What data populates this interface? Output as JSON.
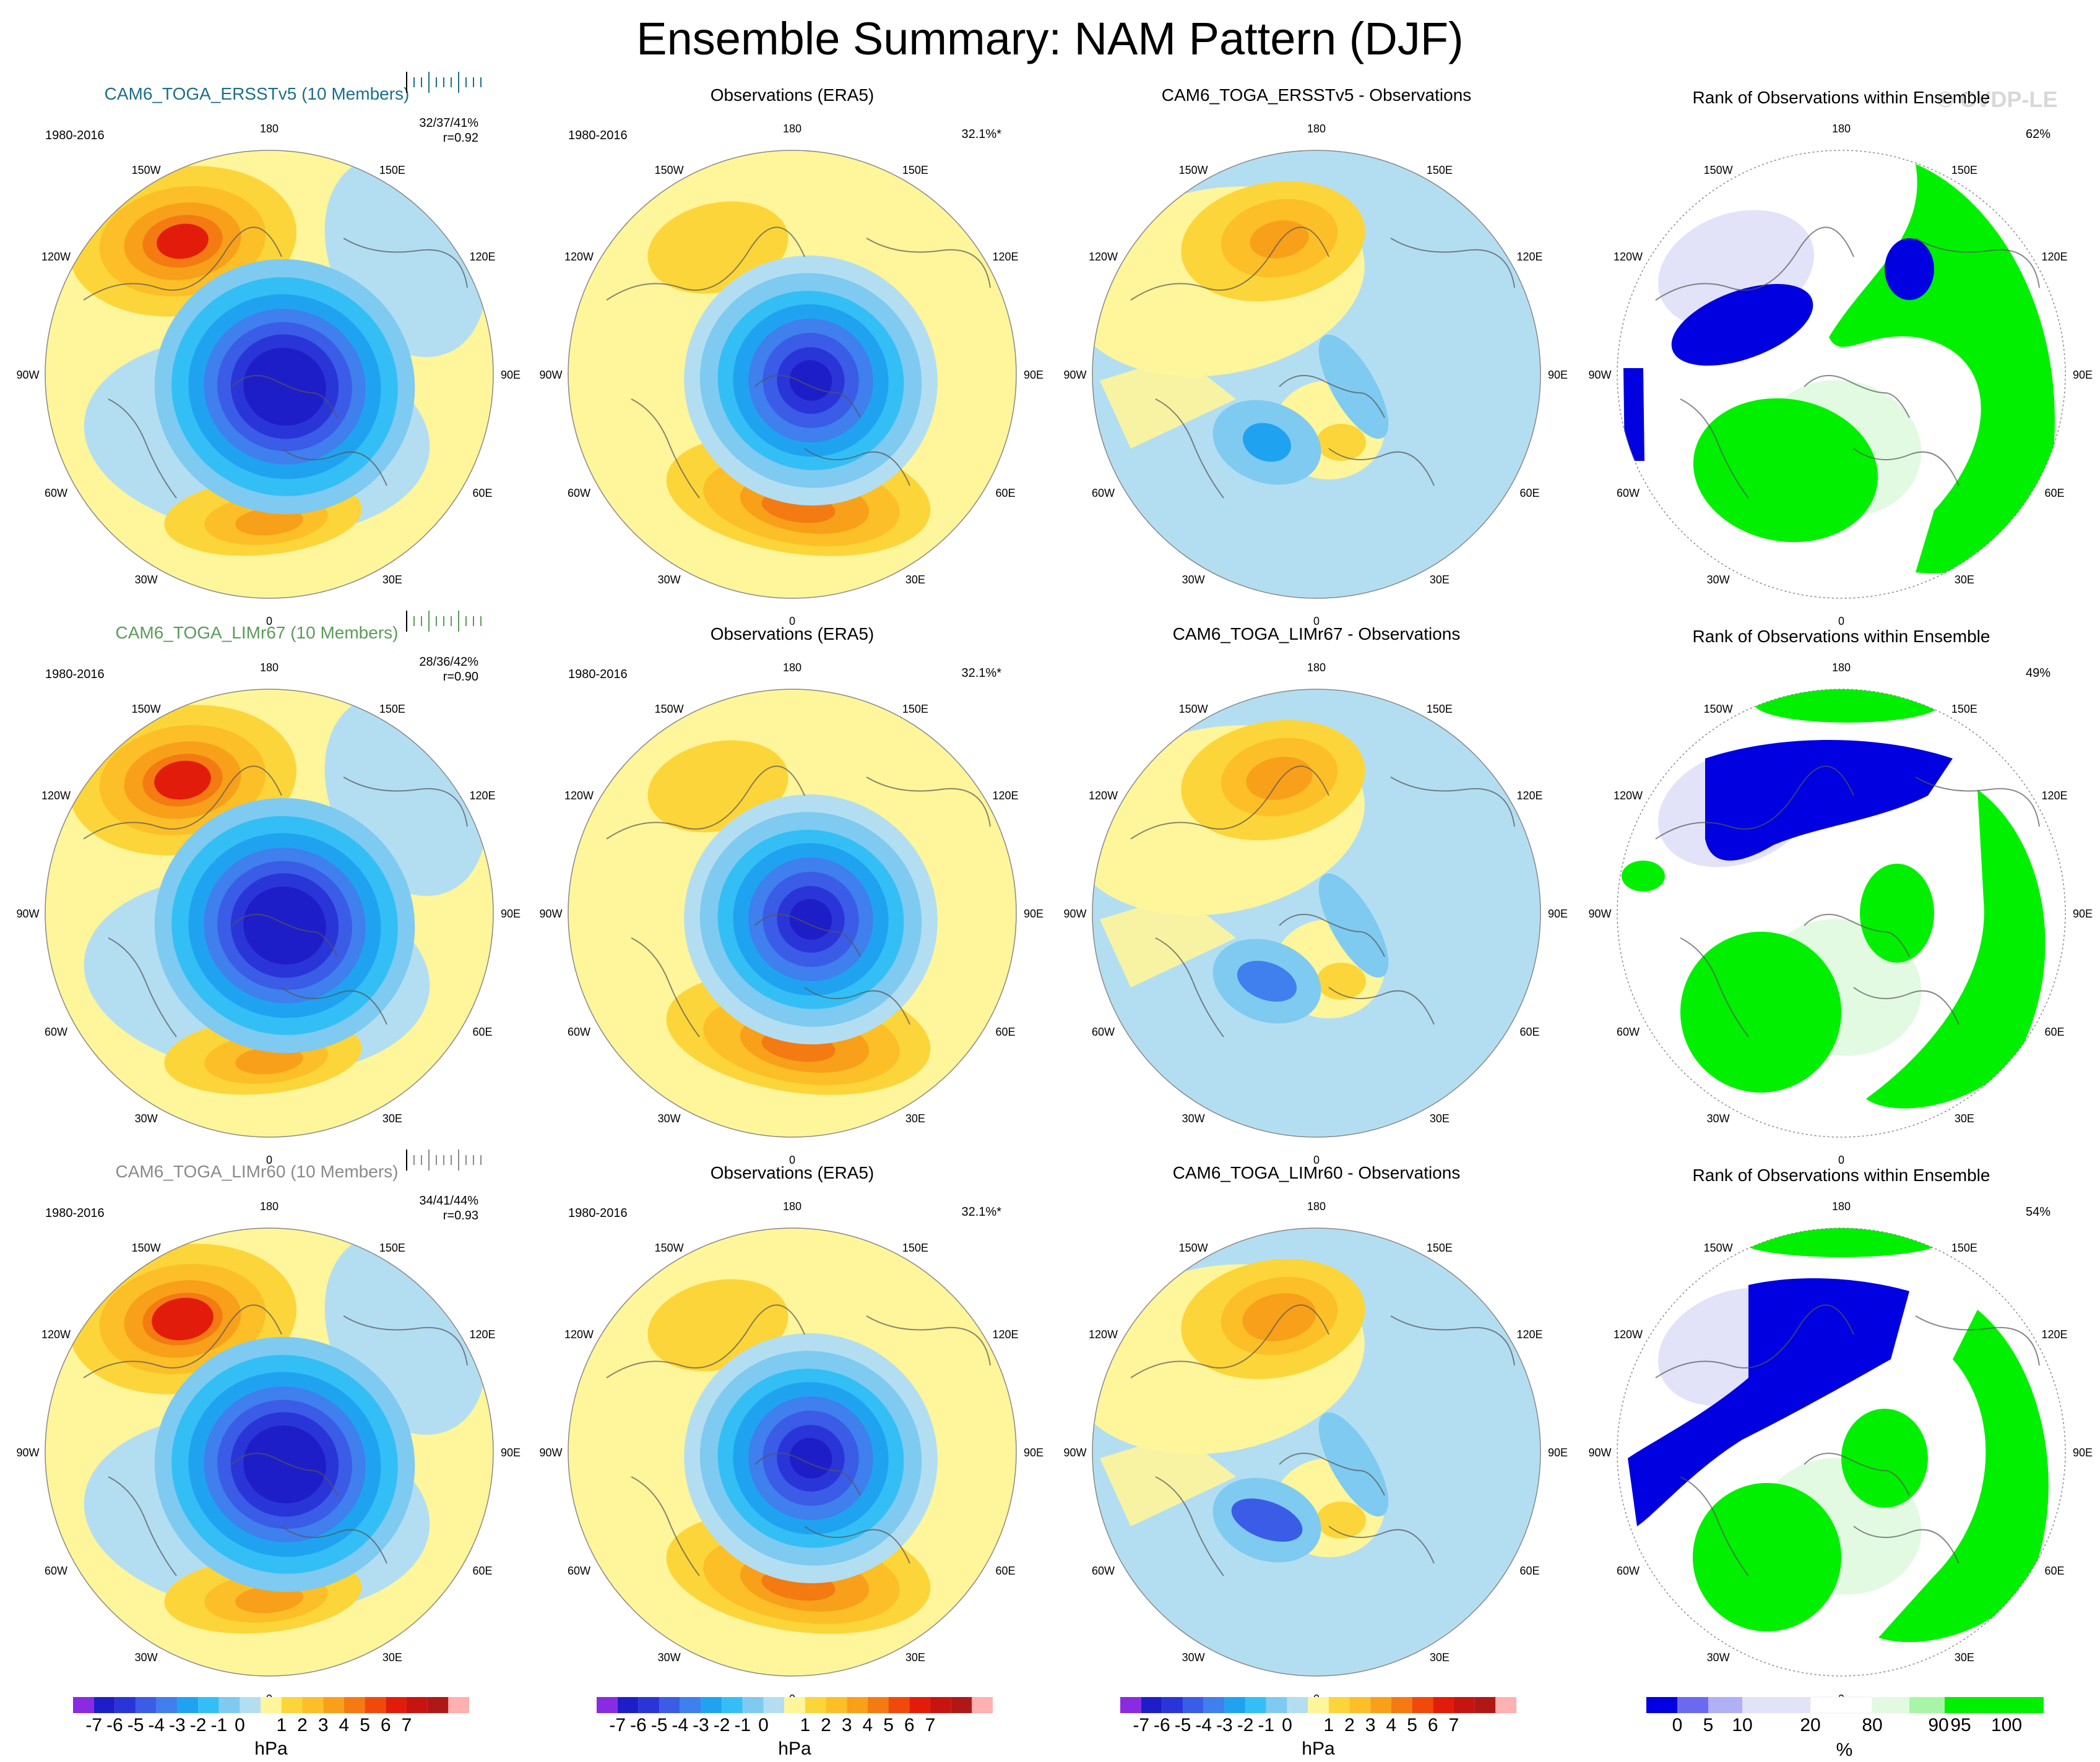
{
  "page": {
    "title": "Ensemble Summary: NAM Pattern (DJF)",
    "watermark": "© CVDP-LE"
  },
  "lon_labels": [
    "180",
    "150E",
    "120E",
    "90E",
    "60E",
    "30E",
    "0",
    "30W",
    "60W",
    "90W",
    "120W",
    "150W"
  ],
  "colors": {
    "ensemble_1": "#1a6f8a",
    "ensemble_2": "#5a9b5a",
    "ensemble_3": "#8a8a8a",
    "rank_low": "#0000e0",
    "rank_high": "#00f000",
    "coast": "#555555"
  },
  "rows": [
    {
      "ensemble": {
        "title": "CAM6_TOGA_ERSSTv5 (10 Members)",
        "period": "1980-2016",
        "stat": "32/37/41%",
        "corr": "r=0.92"
      },
      "obs": {
        "title": "Observations (ERA5)",
        "period": "1980-2016",
        "variance": "32.1%*"
      },
      "diff": {
        "title": "CAM6_TOGA_ERSSTv5 - Observations"
      },
      "rank": {
        "title": "Rank of Observations within Ensemble",
        "percent": "62%"
      }
    },
    {
      "ensemble": {
        "title": "CAM6_TOGA_LIMr67 (10 Members)",
        "period": "1980-2016",
        "stat": "28/36/42%",
        "corr": "r=0.90"
      },
      "obs": {
        "title": "Observations (ERA5)",
        "period": "1980-2016",
        "variance": "32.1%*"
      },
      "diff": {
        "title": "CAM6_TOGA_LIMr67 - Observations"
      },
      "rank": {
        "title": "Rank of Observations within Ensemble",
        "percent": "49%"
      }
    },
    {
      "ensemble": {
        "title": "CAM6_TOGA_LIMr60 (10 Members)",
        "period": "1980-2016",
        "stat": "34/41/44%",
        "corr": "r=0.93"
      },
      "obs": {
        "title": "Observations (ERA5)",
        "period": "1980-2016",
        "variance": "32.1%*"
      },
      "diff": {
        "title": "CAM6_TOGA_LIMr60 - Observations"
      },
      "rank": {
        "title": "Rank of Observations within Ensemble",
        "percent": "54%"
      }
    }
  ],
  "hpa_colorbar": {
    "unit": "hPa",
    "labels": [
      "-7",
      "-6",
      "-5",
      "-4",
      "-3",
      "-2",
      "-1",
      "0",
      "1",
      "2",
      "3",
      "4",
      "5",
      "6",
      "7"
    ],
    "colors": [
      "#8a2be2",
      "#1e1ec8",
      "#2a35d8",
      "#3a5ce6",
      "#3f7fee",
      "#1fa3f0",
      "#33bff5",
      "#7fcaf0",
      "#b3def2",
      "#fff59a",
      "#fcd53a",
      "#fcbf28",
      "#f8a01a",
      "#f47a12",
      "#ef4a0c",
      "#e21c0a",
      "#c81410",
      "#b01818",
      "#ffb0b0"
    ]
  },
  "rank_colorbar": {
    "unit": "%",
    "labels": [
      "0",
      "5",
      "10",
      "20",
      "80",
      "90",
      "95",
      "100"
    ],
    "colors": [
      "#0000e0",
      "#6a6af0",
      "#b0b0f5",
      "#e2e2f8",
      "#ffffff",
      "#e2fae2",
      "#a8f5a8",
      "#00f000"
    ]
  }
}
